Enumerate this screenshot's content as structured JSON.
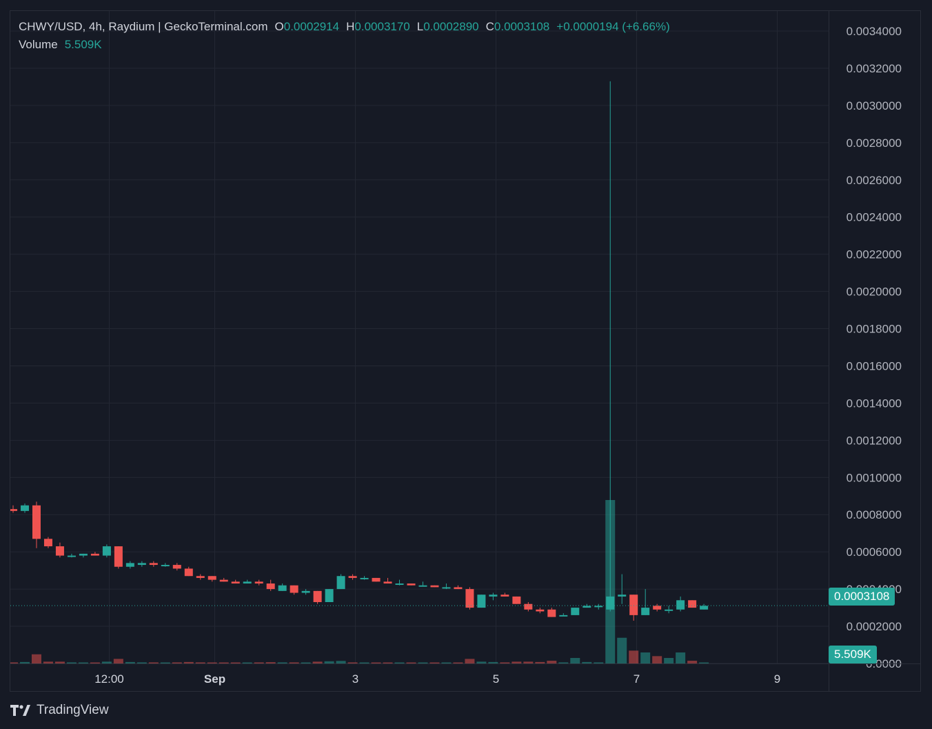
{
  "legend": {
    "symbol": "CHWY/USD, 4h, Raydium | GeckoTerminal.com",
    "o_label": "O",
    "o_value": "0.0002914",
    "h_label": "H",
    "h_value": "0.0003170",
    "l_label": "L",
    "l_value": "0.0002890",
    "c_label": "C",
    "c_value": "0.0003108",
    "change": "+0.0000194 (+6.66%)",
    "volume_label": "Volume",
    "volume_value": "5.509K"
  },
  "last_price_badge": "0.0003108",
  "volume_badge": "5.509K",
  "branding": "TradingView",
  "colors": {
    "up": "#26a69a",
    "down": "#ef5350",
    "background": "#161a25",
    "grid": "#232733"
  },
  "chart_data": {
    "type": "candlestick",
    "y_axis_ticks": [
      "0.0034000",
      "0.0032000",
      "0.0030000",
      "0.0028000",
      "0.0026000",
      "0.0024000",
      "0.0022000",
      "0.0020000",
      "0.0018000",
      "0.0016000",
      "0.0014000",
      "0.0012000",
      "0.0010000",
      "0.0008000",
      "0.0006000",
      "0.0004000",
      "0.0002000",
      "0.0000"
    ],
    "x_axis_ticks": [
      {
        "label": "12:00",
        "x": 0.5
      },
      {
        "label": "Sep",
        "x": 2
      },
      {
        "label": "3",
        "x": 4
      },
      {
        "label": "5",
        "x": 6
      },
      {
        "label": "7",
        "x": 8
      },
      {
        "label": "9",
        "x": 10
      }
    ],
    "ylim": [
      0,
      0.0035
    ],
    "last_price": 0.0003108,
    "candles": [
      [
        0.00083,
        0.00085,
        0.00081,
        0.00082,
        0.06
      ],
      [
        0.00082,
        0.00086,
        0.00081,
        0.00085,
        0.08
      ],
      [
        0.00085,
        0.00087,
        0.00062,
        0.00067,
        0.5
      ],
      [
        0.00067,
        0.00068,
        0.00062,
        0.00063,
        0.1
      ],
      [
        0.00063,
        0.00065,
        0.00057,
        0.00058,
        0.1
      ],
      [
        0.00058,
        0.00059,
        0.00057,
        0.00058,
        0.06
      ],
      [
        0.00058,
        0.00059,
        0.00057,
        0.00059,
        0.05
      ],
      [
        0.00059,
        0.0006,
        0.00058,
        0.00058,
        0.05
      ],
      [
        0.00058,
        0.00064,
        0.00057,
        0.00063,
        0.1
      ],
      [
        0.00063,
        0.00063,
        0.00051,
        0.00052,
        0.25
      ],
      [
        0.00052,
        0.00055,
        0.00051,
        0.00054,
        0.08
      ],
      [
        0.00053,
        0.00055,
        0.00052,
        0.00054,
        0.06
      ],
      [
        0.00054,
        0.00055,
        0.00052,
        0.00053,
        0.06
      ],
      [
        0.00053,
        0.00054,
        0.00052,
        0.00053,
        0.05
      ],
      [
        0.00053,
        0.00054,
        0.0005,
        0.00051,
        0.06
      ],
      [
        0.00051,
        0.00052,
        0.00047,
        0.00047,
        0.08
      ],
      [
        0.00047,
        0.00048,
        0.00045,
        0.00046,
        0.06
      ],
      [
        0.00047,
        0.00047,
        0.00044,
        0.00045,
        0.05
      ],
      [
        0.00045,
        0.00046,
        0.00044,
        0.00044,
        0.05
      ],
      [
        0.00044,
        0.00045,
        0.00043,
        0.00043,
        0.05
      ],
      [
        0.00043,
        0.00045,
        0.00043,
        0.00044,
        0.05
      ],
      [
        0.00044,
        0.00045,
        0.00042,
        0.00043,
        0.06
      ],
      [
        0.00043,
        0.00045,
        0.00039,
        0.0004,
        0.07
      ],
      [
        0.00039,
        0.00043,
        0.00039,
        0.00042,
        0.06
      ],
      [
        0.00042,
        0.00042,
        0.00037,
        0.00038,
        0.06
      ],
      [
        0.00038,
        0.0004,
        0.00037,
        0.00039,
        0.05
      ],
      [
        0.00039,
        0.00039,
        0.00032,
        0.00033,
        0.1
      ],
      [
        0.00033,
        0.0004,
        0.00033,
        0.0004,
        0.12
      ],
      [
        0.0004,
        0.00048,
        0.0004,
        0.00047,
        0.14
      ],
      [
        0.00047,
        0.00048,
        0.00045,
        0.00046,
        0.06
      ],
      [
        0.00046,
        0.00047,
        0.00045,
        0.00046,
        0.05
      ],
      [
        0.00046,
        0.00046,
        0.00044,
        0.00044,
        0.05
      ],
      [
        0.00044,
        0.00046,
        0.00043,
        0.00043,
        0.05
      ],
      [
        0.00043,
        0.00045,
        0.00042,
        0.00043,
        0.05
      ],
      [
        0.00043,
        0.00043,
        0.00042,
        0.00042,
        0.05
      ],
      [
        0.00042,
        0.00044,
        0.00042,
        0.00042,
        0.05
      ],
      [
        0.00042,
        0.00042,
        0.00041,
        0.00041,
        0.05
      ],
      [
        0.00041,
        0.00043,
        0.0004,
        0.00041,
        0.05
      ],
      [
        0.00041,
        0.00042,
        0.0004,
        0.0004,
        0.05
      ],
      [
        0.0004,
        0.00041,
        0.00029,
        0.0003,
        0.25
      ],
      [
        0.0003,
        0.00037,
        0.0003,
        0.00037,
        0.1
      ],
      [
        0.00036,
        0.00038,
        0.00034,
        0.00037,
        0.08
      ],
      [
        0.00037,
        0.00038,
        0.00036,
        0.00036,
        0.06
      ],
      [
        0.00036,
        0.00036,
        0.00032,
        0.00032,
        0.1
      ],
      [
        0.00032,
        0.00033,
        0.00028,
        0.00029,
        0.1
      ],
      [
        0.00029,
        0.0003,
        0.00027,
        0.00028,
        0.08
      ],
      [
        0.00029,
        0.0003,
        0.00025,
        0.00025,
        0.15
      ],
      [
        0.00026,
        0.00027,
        0.00026,
        0.00026,
        0.06
      ],
      [
        0.00026,
        0.0003,
        0.00026,
        0.0003,
        0.3
      ],
      [
        0.0003,
        0.00032,
        0.0003,
        0.00031,
        0.08
      ],
      [
        0.00031,
        0.00032,
        0.00029,
        0.00031,
        0.06
      ],
      [
        0.00029,
        0.00313,
        0.00028,
        0.00036,
        8.9
      ],
      [
        0.00036,
        0.00048,
        0.00032,
        0.00037,
        1.4
      ],
      [
        0.00037,
        0.00037,
        0.00023,
        0.00026,
        0.7
      ],
      [
        0.00026,
        0.0004,
        0.00026,
        0.0003,
        0.6
      ],
      [
        0.00031,
        0.00032,
        0.00028,
        0.00029,
        0.4
      ],
      [
        0.00029,
        0.00031,
        0.00027,
        0.00029,
        0.3
      ],
      [
        0.00029,
        0.00036,
        0.00028,
        0.00034,
        0.6
      ],
      [
        0.00034,
        0.00034,
        0.0003,
        0.0003,
        0.15
      ],
      [
        0.00029,
        0.00032,
        0.00029,
        0.00031,
        0.055
      ]
    ]
  }
}
